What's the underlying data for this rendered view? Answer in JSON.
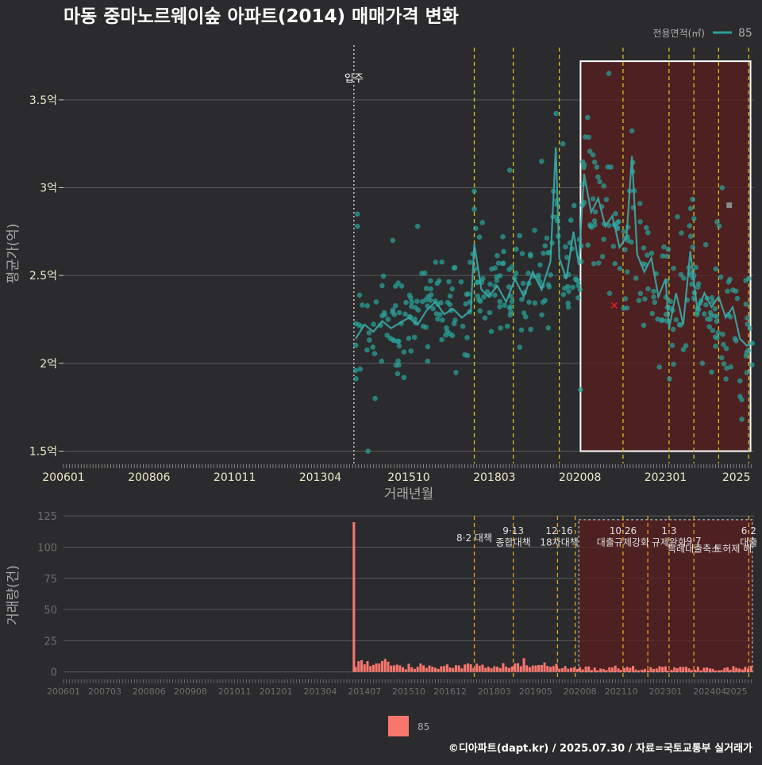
{
  "title": "마동 중마노르웨이숲 아파트(2014) 매매가격 변화",
  "footer": "©디아파트(dapt.kr) / 2025.07.30 / 자료=국토교통부 실거래가",
  "legend": {
    "title": "전용면적(㎡)",
    "series": "85"
  },
  "colors": {
    "bg": "#2b2b2d",
    "teal": "#2aa198",
    "line": "#3aa8a6",
    "bar": "#f8766d",
    "vline": "#d4c21a",
    "vline_bottom": "#e5a020",
    "shade": "#5a1e1e",
    "grid": "#5a5a5c"
  },
  "chart_data": [
    {
      "type": "scatter",
      "name": "price",
      "xlabel": "거래년월",
      "ylabel": "평균가(억)",
      "xlim": [
        2006.0,
        2025.5
      ],
      "ylim": [
        1.43,
        3.82
      ],
      "x_ticks": [
        "200601",
        "200806",
        "201011",
        "201304",
        "201510",
        "201803",
        "202008",
        "202301",
        "2025"
      ],
      "y_ticks": [
        {
          "v": 1.5,
          "label": "1.5억"
        },
        {
          "v": 2.0,
          "label": "2억"
        },
        {
          "v": 2.5,
          "label": "2.5억"
        },
        {
          "v": 3.0,
          "label": "3억"
        },
        {
          "v": 3.5,
          "label": "3.5억"
        }
      ],
      "move_in": {
        "x": 2014.2,
        "label": "입주"
      },
      "policy_lines": [
        2017.6,
        2018.7,
        2020.0,
        2021.8,
        2023.1,
        2023.8,
        2024.5,
        2025.35
      ],
      "shaded": {
        "x0": 2020.6,
        "x1": 2025.4,
        "y0": 1.5,
        "y1": 3.72
      },
      "outliers": [
        {
          "x": 2024.8,
          "y": 2.9,
          "kind": "square"
        },
        {
          "x": 2021.55,
          "y": 2.33,
          "kind": "cross"
        }
      ],
      "line_points": [
        [
          2014.25,
          2.14
        ],
        [
          2014.5,
          2.22
        ],
        [
          2014.75,
          2.18
        ],
        [
          2015.0,
          2.24
        ],
        [
          2015.25,
          2.2
        ],
        [
          2015.5,
          2.23
        ],
        [
          2015.75,
          2.26
        ],
        [
          2016.0,
          2.22
        ],
        [
          2016.25,
          2.3
        ],
        [
          2016.5,
          2.35
        ],
        [
          2016.75,
          2.28
        ],
        [
          2017.0,
          2.31
        ],
        [
          2017.25,
          2.26
        ],
        [
          2017.5,
          2.3
        ],
        [
          2017.6,
          2.68
        ],
        [
          2017.8,
          2.42
        ],
        [
          2018.0,
          2.38
        ],
        [
          2018.25,
          2.44
        ],
        [
          2018.5,
          2.35
        ],
        [
          2018.75,
          2.48
        ],
        [
          2019.0,
          2.38
        ],
        [
          2019.25,
          2.52
        ],
        [
          2019.5,
          2.42
        ],
        [
          2019.75,
          2.58
        ],
        [
          2019.9,
          3.23
        ],
        [
          2020.0,
          2.6
        ],
        [
          2020.2,
          2.48
        ],
        [
          2020.4,
          2.75
        ],
        [
          2020.55,
          2.56
        ],
        [
          2020.7,
          3.08
        ],
        [
          2020.9,
          2.86
        ],
        [
          2021.1,
          2.94
        ],
        [
          2021.3,
          2.78
        ],
        [
          2021.5,
          2.84
        ],
        [
          2021.7,
          2.66
        ],
        [
          2021.9,
          2.72
        ],
        [
          2022.05,
          3.18
        ],
        [
          2022.2,
          2.62
        ],
        [
          2022.4,
          2.52
        ],
        [
          2022.6,
          2.6
        ],
        [
          2022.8,
          2.38
        ],
        [
          2023.0,
          2.48
        ],
        [
          2023.1,
          2.2
        ],
        [
          2023.3,
          2.4
        ],
        [
          2023.5,
          2.22
        ],
        [
          2023.7,
          2.64
        ],
        [
          2023.9,
          2.3
        ],
        [
          2024.1,
          2.4
        ],
        [
          2024.3,
          2.32
        ],
        [
          2024.5,
          2.38
        ],
        [
          2024.7,
          2.26
        ],
        [
          2024.9,
          2.32
        ],
        [
          2025.1,
          2.14
        ],
        [
          2025.3,
          2.1
        ],
        [
          2025.45,
          2.12
        ]
      ]
    },
    {
      "type": "bar",
      "name": "volume",
      "ylabel": "거래량(건)",
      "xlim": [
        2006.0,
        2025.5
      ],
      "ylim": [
        -4,
        127
      ],
      "x_ticks": [
        "200601",
        "200703",
        "200806",
        "200908",
        "201011",
        "201201",
        "201304",
        "201407",
        "201510",
        "201612",
        "201803",
        "201905",
        "202008",
        "202110",
        "202301",
        "202404",
        "2025"
      ],
      "y_ticks": [
        0,
        25,
        50,
        75,
        100,
        125
      ],
      "peak": {
        "x": 2014.2,
        "value": 120
      },
      "policy_lines": [
        2017.6,
        2018.7,
        2019.95,
        2020.45,
        2021.8,
        2022.5,
        2023.1,
        2023.8,
        2025.35
      ],
      "shaded": {
        "x0": 2020.55,
        "x1": 2025.45,
        "y1": 122
      },
      "annotations": [
        {
          "x": 2017.6,
          "label": "8·2 대책",
          "row": 1
        },
        {
          "x": 2018.7,
          "label": "9·13",
          "row": 0
        },
        {
          "x": 2018.7,
          "label": "종합대책",
          "row": 1.6
        },
        {
          "x": 2020.0,
          "label": "12·16",
          "row": 0
        },
        {
          "x": 2020.0,
          "label": "18차대책",
          "row": 1.6
        },
        {
          "x": 2021.8,
          "label": "10·26",
          "row": 0
        },
        {
          "x": 2021.8,
          "label": "대출규제강화",
          "row": 1.6
        },
        {
          "x": 2023.1,
          "label": "1·3",
          "row": 0
        },
        {
          "x": 2023.1,
          "label": "규제완화",
          "row": 1.6
        },
        {
          "x": 2023.8,
          "label": "9·7",
          "row": 1.45
        },
        {
          "x": 2023.8,
          "label": "특례대출축소",
          "row": 2.5
        },
        {
          "x": 2024.9,
          "label": "토허제 해",
          "row": 2.5
        },
        {
          "x": 2025.35,
          "label": "6·2",
          "row": 0
        },
        {
          "x": 2025.35,
          "label": "대출",
          "row": 1.6
        }
      ],
      "legend_label": "85"
    }
  ]
}
